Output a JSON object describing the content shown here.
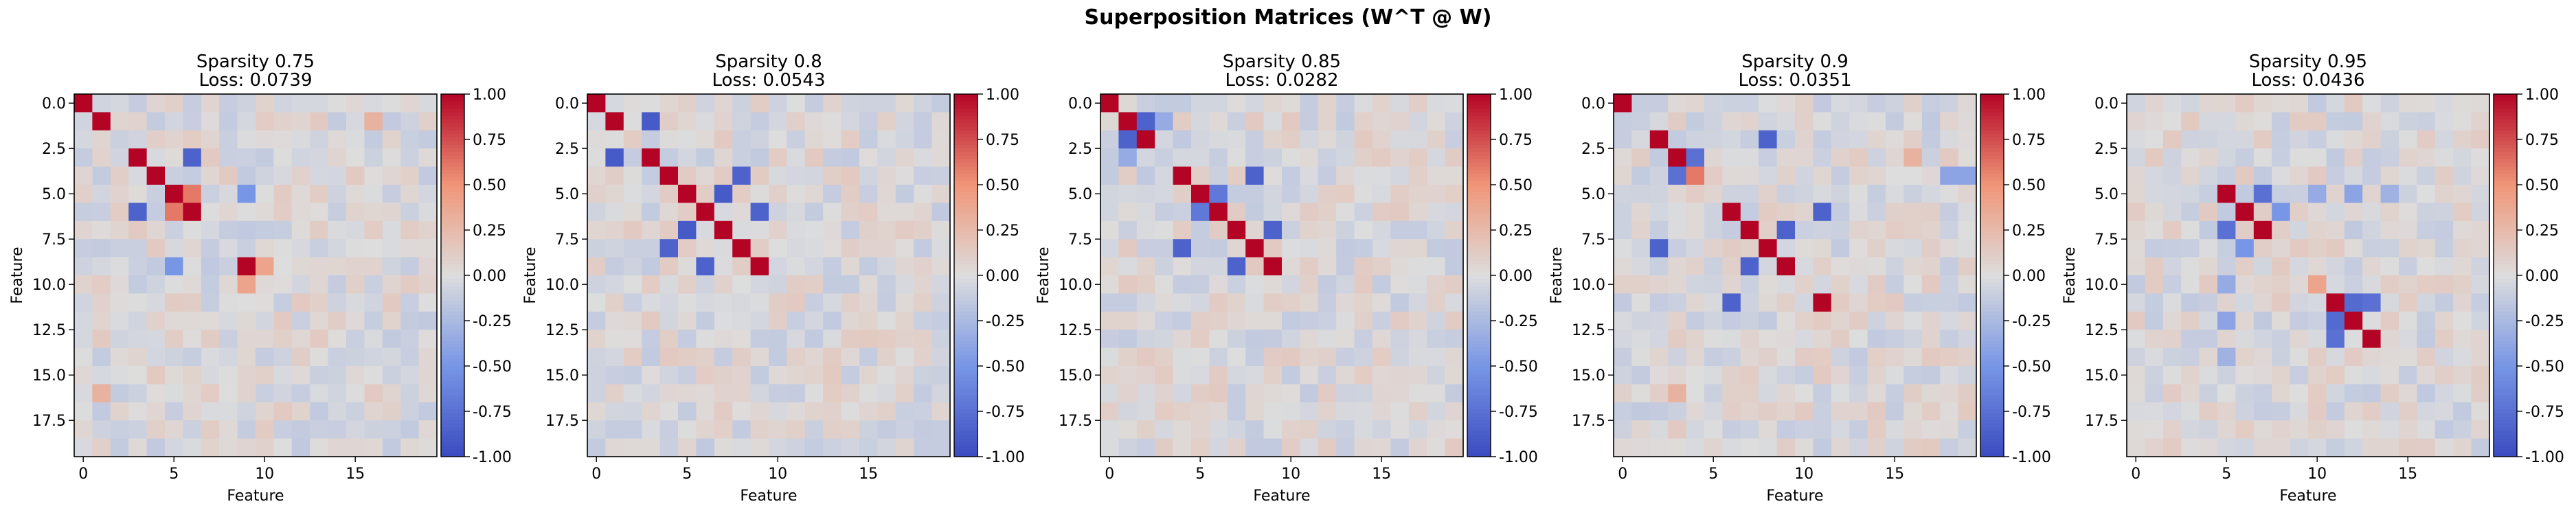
{
  "figure": {
    "suptitle": "Superposition Matrices (W^T @ W)"
  },
  "colormap": {
    "name": "coolwarm",
    "low_color": "#3b4cc0",
    "mid_color": "#dddddd",
    "high_color": "#b40426"
  },
  "chart_data": [
    {
      "type": "heatmap",
      "title_line1": "Sparsity 0.75",
      "title_line2": "Loss: 0.0739",
      "xlabel": "Feature",
      "ylabel": "Feature",
      "xticks": [
        "0",
        "5",
        "10",
        "15"
      ],
      "yticks": [
        "0.0",
        "2.5",
        "5.0",
        "7.5",
        "10.0",
        "12.5",
        "15.0",
        "17.5"
      ],
      "clim": [
        -1.0,
        1.0
      ],
      "colorbar_ticks": [
        "1.00",
        "0.75",
        "0.50",
        "0.25",
        "0.00",
        "-0.25",
        "-0.50",
        "-0.75",
        "-1.00"
      ],
      "size": 20,
      "strong_entries": [
        [
          0,
          0,
          1.0
        ],
        [
          1,
          1,
          1.0
        ],
        [
          3,
          3,
          1.0
        ],
        [
          4,
          4,
          1.0
        ],
        [
          5,
          5,
          1.0
        ],
        [
          6,
          6,
          1.0
        ],
        [
          9,
          9,
          1.0
        ],
        [
          3,
          6,
          -0.85
        ],
        [
          6,
          3,
          -0.85
        ],
        [
          5,
          9,
          -0.5
        ],
        [
          9,
          5,
          -0.5
        ],
        [
          6,
          5,
          0.6
        ],
        [
          5,
          6,
          0.6
        ],
        [
          9,
          10,
          0.4
        ],
        [
          10,
          9,
          0.4
        ],
        [
          1,
          16,
          0.3
        ],
        [
          16,
          1,
          0.3
        ]
      ],
      "noise_seed": 11
    },
    {
      "type": "heatmap",
      "title_line1": "Sparsity 0.8",
      "title_line2": "Loss: 0.0543",
      "xlabel": "Feature",
      "ylabel": "Feature",
      "xticks": [
        "0",
        "5",
        "10",
        "15"
      ],
      "yticks": [
        "0.0",
        "2.5",
        "5.0",
        "7.5",
        "10.0",
        "12.5",
        "15.0",
        "17.5"
      ],
      "clim": [
        -1.0,
        1.0
      ],
      "colorbar_ticks": [
        "1.00",
        "0.75",
        "0.50",
        "0.25",
        "0.00",
        "-0.25",
        "-0.50",
        "-0.75",
        "-1.00"
      ],
      "size": 20,
      "strong_entries": [
        [
          0,
          0,
          1.0
        ],
        [
          1,
          1,
          1.0
        ],
        [
          3,
          3,
          1.0
        ],
        [
          4,
          4,
          1.0
        ],
        [
          5,
          5,
          1.0
        ],
        [
          6,
          6,
          1.0
        ],
        [
          7,
          7,
          1.0
        ],
        [
          8,
          8,
          1.0
        ],
        [
          9,
          9,
          1.0
        ],
        [
          1,
          3,
          -0.9
        ],
        [
          3,
          1,
          -0.9
        ],
        [
          5,
          7,
          -0.9
        ],
        [
          7,
          5,
          -0.9
        ],
        [
          4,
          8,
          -0.85
        ],
        [
          8,
          4,
          -0.85
        ],
        [
          6,
          9,
          -0.85
        ],
        [
          9,
          6,
          -0.85
        ]
      ],
      "noise_seed": 23
    },
    {
      "type": "heatmap",
      "title_line1": "Sparsity 0.85",
      "title_line2": "Loss: 0.0282",
      "xlabel": "Feature",
      "ylabel": "Feature",
      "xticks": [
        "0",
        "5",
        "10",
        "15"
      ],
      "yticks": [
        "0.0",
        "2.5",
        "5.0",
        "7.5",
        "10.0",
        "12.5",
        "15.0",
        "17.5"
      ],
      "clim": [
        -1.0,
        1.0
      ],
      "colorbar_ticks": [
        "1.00",
        "0.75",
        "0.50",
        "0.25",
        "0.00",
        "-0.25",
        "-0.50",
        "-0.75",
        "-1.00"
      ],
      "size": 20,
      "strong_entries": [
        [
          0,
          0,
          1.0
        ],
        [
          1,
          1,
          1.0
        ],
        [
          2,
          2,
          1.0
        ],
        [
          4,
          4,
          1.0
        ],
        [
          5,
          5,
          1.0
        ],
        [
          6,
          6,
          1.0
        ],
        [
          7,
          7,
          1.0
        ],
        [
          8,
          8,
          1.0
        ],
        [
          9,
          9,
          1.0
        ],
        [
          1,
          2,
          -0.85
        ],
        [
          2,
          1,
          -0.85
        ],
        [
          4,
          8,
          -0.85
        ],
        [
          8,
          4,
          -0.85
        ],
        [
          5,
          6,
          -0.7
        ],
        [
          6,
          5,
          -0.7
        ],
        [
          7,
          9,
          -0.85
        ],
        [
          9,
          7,
          -0.85
        ],
        [
          3,
          3,
          -0.1
        ],
        [
          3,
          1,
          -0.35
        ],
        [
          1,
          3,
          -0.35
        ]
      ],
      "noise_seed": 37
    },
    {
      "type": "heatmap",
      "title_line1": "Sparsity 0.9",
      "title_line2": "Loss: 0.0351",
      "xlabel": "Feature",
      "ylabel": "Feature",
      "xticks": [
        "0",
        "5",
        "10",
        "15"
      ],
      "yticks": [
        "0.0",
        "2.5",
        "5.0",
        "7.5",
        "10.0",
        "12.5",
        "15.0",
        "17.5"
      ],
      "clim": [
        -1.0,
        1.0
      ],
      "colorbar_ticks": [
        "1.00",
        "0.75",
        "0.50",
        "0.25",
        "0.00",
        "-0.25",
        "-0.50",
        "-0.75",
        "-1.00"
      ],
      "size": 20,
      "strong_entries": [
        [
          0,
          0,
          1.0
        ],
        [
          2,
          2,
          1.0
        ],
        [
          3,
          3,
          1.0
        ],
        [
          6,
          6,
          1.0
        ],
        [
          8,
          8,
          1.0
        ],
        [
          9,
          9,
          1.0
        ],
        [
          11,
          11,
          1.0
        ],
        [
          2,
          8,
          -0.85
        ],
        [
          8,
          2,
          -0.85
        ],
        [
          3,
          4,
          -0.75
        ],
        [
          4,
          3,
          -0.75
        ],
        [
          4,
          4,
          0.6
        ],
        [
          6,
          11,
          -0.85
        ],
        [
          11,
          6,
          -0.85
        ],
        [
          7,
          9,
          -0.85
        ],
        [
          9,
          7,
          -0.85
        ],
        [
          8,
          8,
          1.0
        ],
        [
          7,
          7,
          1.0
        ],
        [
          3,
          16,
          0.3
        ],
        [
          16,
          3,
          0.3
        ],
        [
          4,
          18,
          -0.4
        ],
        [
          4,
          19,
          -0.4
        ]
      ],
      "noise_seed": 53
    },
    {
      "type": "heatmap",
      "title_line1": "Sparsity 0.95",
      "title_line2": "Loss: 0.0436",
      "xlabel": "Feature",
      "ylabel": "Feature",
      "xticks": [
        "0",
        "5",
        "10",
        "15"
      ],
      "yticks": [
        "0.0",
        "2.5",
        "5.0",
        "7.5",
        "10.0",
        "12.5",
        "15.0",
        "17.5"
      ],
      "clim": [
        -1.0,
        1.0
      ],
      "colorbar_ticks": [
        "1.00",
        "0.75",
        "0.50",
        "0.25",
        "0.00",
        "-0.25",
        "-0.50",
        "-0.75",
        "-1.00"
      ],
      "size": 20,
      "strong_entries": [
        [
          5,
          5,
          1.0
        ],
        [
          6,
          6,
          1.0
        ],
        [
          7,
          7,
          1.0
        ],
        [
          11,
          11,
          1.0
        ],
        [
          12,
          12,
          1.0
        ],
        [
          13,
          13,
          1.0
        ],
        [
          5,
          7,
          -0.75
        ],
        [
          7,
          5,
          -0.75
        ],
        [
          6,
          8,
          -0.5
        ],
        [
          8,
          6,
          -0.5
        ],
        [
          11,
          13,
          -0.75
        ],
        [
          13,
          11,
          -0.75
        ],
        [
          12,
          11,
          -0.8
        ],
        [
          11,
          12,
          -0.8
        ],
        [
          10,
          10,
          0.4
        ],
        [
          5,
          10,
          -0.35
        ],
        [
          10,
          5,
          -0.35
        ],
        [
          5,
          12,
          -0.4
        ],
        [
          12,
          5,
          -0.4
        ],
        [
          5,
          14,
          -0.3
        ],
        [
          14,
          5,
          -0.3
        ]
      ],
      "noise_seed": 71
    }
  ]
}
